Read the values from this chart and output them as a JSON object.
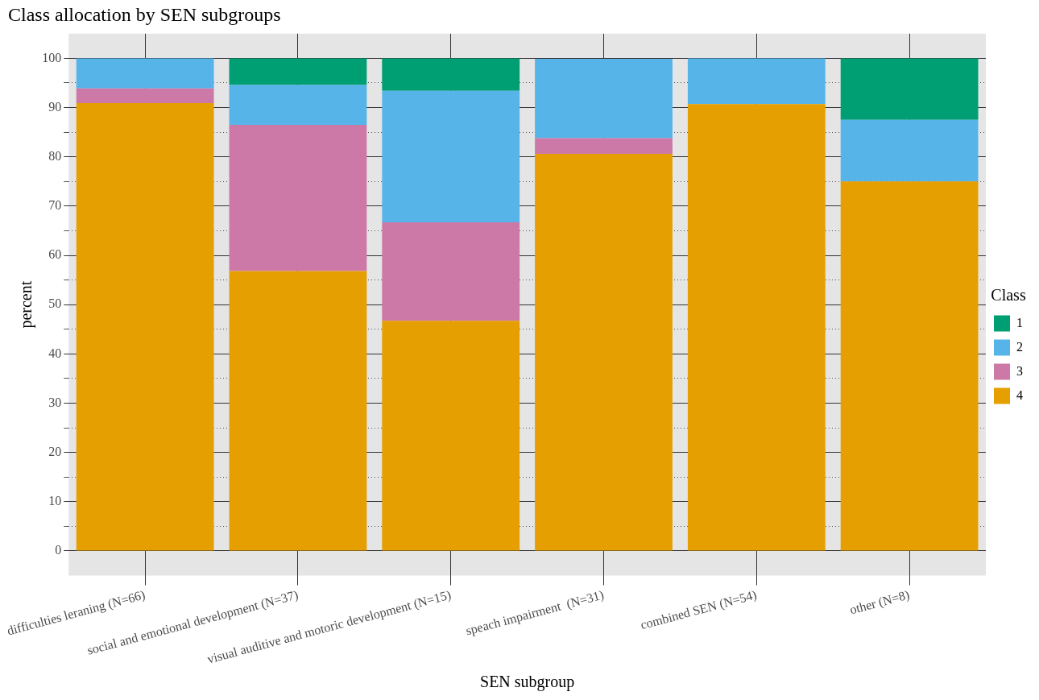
{
  "chart_data": {
    "type": "bar",
    "title": "Class allocation by SEN subgroups",
    "xlabel": "SEN subgroup",
    "ylabel": "percent",
    "legend_title": "Class",
    "categories": [
      "difficulties leraning (N=66)",
      "social and emotional development (N=37)",
      "visual auditive and motoric development (N=15)",
      "speach impairment  (N=31)",
      "combined SEN (N=54)",
      "other (N=8)"
    ],
    "stacked": true,
    "series": [
      {
        "name": "4",
        "color": "#e69f00",
        "values": [
          90.9,
          56.8,
          46.7,
          80.6,
          90.7,
          75
        ]
      },
      {
        "name": "3",
        "color": "#cc79a7",
        "values": [
          3.0,
          29.7,
          20,
          3.2,
          0,
          0
        ]
      },
      {
        "name": "2",
        "color": "#56b4e9",
        "values": [
          6.1,
          8.1,
          26.7,
          16.1,
          9.3,
          12.5
        ]
      },
      {
        "name": "1",
        "color": "#009e73",
        "values": [
          0,
          5.4,
          6.6,
          0,
          0,
          12.5
        ]
      }
    ],
    "ylim": [
      -5,
      105
    ],
    "yticks": [
      0,
      {
        "value": 5,
        "label": null
      },
      10,
      {
        "value": 15,
        "label": null
      },
      20,
      {
        "value": 25,
        "label": null
      },
      30,
      {
        "value": 35,
        "label": null
      },
      40,
      {
        "value": 45,
        "label": null
      },
      50,
      {
        "value": 55,
        "label": null
      },
      60,
      {
        "value": 65,
        "label": null
      },
      70,
      {
        "value": 75,
        "label": null
      },
      80,
      {
        "value": 85,
        "label": null
      },
      90,
      {
        "value": 95,
        "label": null
      },
      100
    ],
    "grid": true,
    "legend": "right"
  }
}
